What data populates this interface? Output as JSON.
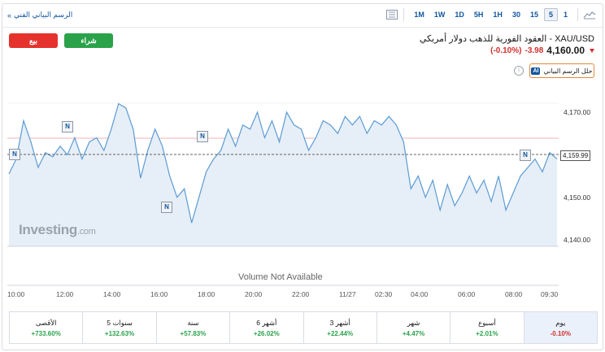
{
  "toolbar": {
    "technical_chart_link": "الرسم البياني الفني",
    "timeframes": [
      "1M",
      "1W",
      "1D",
      "5H",
      "1H",
      "30",
      "15",
      "5",
      "1"
    ],
    "active_timeframe": "5",
    "chart_type_icon": "bar-chart-icon",
    "area_chart_icon": "area-chart-icon"
  },
  "actions": {
    "sell_label": "بيع",
    "buy_label": "شراء"
  },
  "instrument": {
    "title": "XAU/USD - العقود الفورية للذهب دولار أمريكي",
    "price": "4,160.00",
    "change": "-3.98",
    "change_pct": "(-0.10%)",
    "analyze_label": "حلل الرسم البياني",
    "ai_badge": "AI"
  },
  "chart_data": {
    "type": "area",
    "y_ticks": [
      "4,170.00",
      "4,160.00",
      "4,150.00",
      "4,140.00"
    ],
    "current_price_tag": "4,159.99",
    "x_ticks": [
      "10:00",
      "12:00",
      "14:00",
      "16:00",
      "18:00",
      "20:00",
      "22:00",
      "11/27",
      "02:30",
      "04:00",
      "06:00",
      "08:00",
      "09:30"
    ],
    "volume_note": "Volume Not Available",
    "watermark": "Investing",
    "watermark_suffix": ".com",
    "news_marker": "N",
    "colors": {
      "line": "#5b9bd5",
      "fill": "#e6eef7",
      "reference": "#f3b3b3"
    },
    "ylim": [
      4138,
      4173
    ],
    "values": [
      4155.5,
      4159,
      4168,
      4163,
      4157,
      4160.5,
      4159.5,
      4162,
      4160,
      4164,
      4159,
      4163,
      4164,
      4161,
      4166,
      4172,
      4171,
      4166,
      4154.5,
      4161,
      4166,
      4162,
      4155,
      4150,
      4152,
      4144,
      4150,
      4156,
      4159,
      4161,
      4166,
      4162,
      4167,
      4166,
      4170,
      4164,
      4168,
      4163,
      4170,
      4167,
      4166,
      4161,
      4164,
      4168,
      4167,
      4165,
      4169,
      4167,
      4169,
      4165,
      4168,
      4167,
      4169,
      4167,
      4163,
      4152,
      4155,
      4150,
      4154,
      4147,
      4153,
      4148,
      4151,
      4155,
      4151,
      4154,
      4149,
      4155,
      4147,
      4151,
      4155,
      4157,
      4159,
      4156,
      4160.5,
      4159
    ]
  },
  "performance": [
    {
      "label": "الأقصى",
      "value": "+733.60%",
      "dir": "up"
    },
    {
      "label": "5 سنوات",
      "value": "+132.63%",
      "dir": "up"
    },
    {
      "label": "سنة",
      "value": "+57.83%",
      "dir": "up"
    },
    {
      "label": "6 أشهر",
      "value": "+26.02%",
      "dir": "up"
    },
    {
      "label": "3 أشهر",
      "value": "+22.44%",
      "dir": "up"
    },
    {
      "label": "شهر",
      "value": "+4.47%",
      "dir": "up"
    },
    {
      "label": "أسبوع",
      "value": "+2.01%",
      "dir": "up"
    },
    {
      "label": "يوم",
      "value": "-0.10%",
      "dir": "down"
    }
  ]
}
